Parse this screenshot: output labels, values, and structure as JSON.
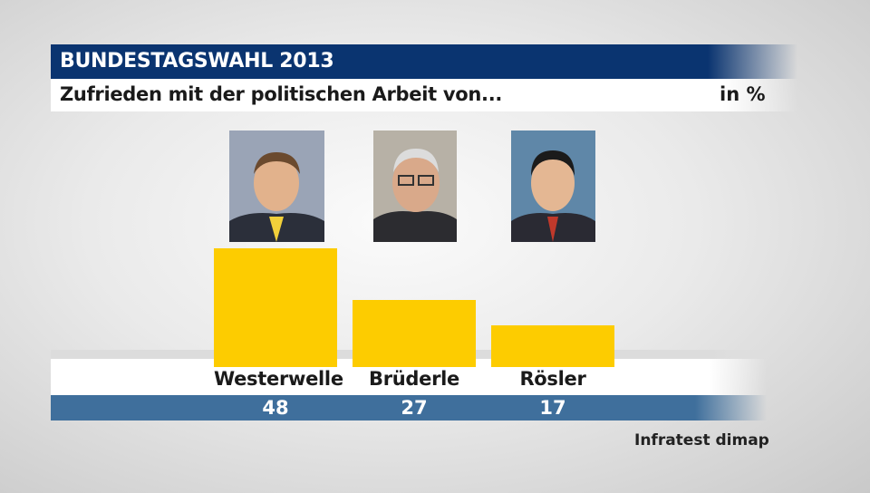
{
  "header": {
    "title": "BUNDESTAGSWAHL 2013",
    "subtitle": "Zufrieden mit der politischen Arbeit von...",
    "unit": "in %"
  },
  "source": "Infratest dimap",
  "colors": {
    "title_bar": "#0a3470",
    "bar": "#fdcc00",
    "value_band": "#3f6f9c"
  },
  "chart_data": {
    "type": "bar",
    "title": "Zufrieden mit der politischen Arbeit von...",
    "unit": "in %",
    "categories": [
      "Westerwelle",
      "Brüderle",
      "Rösler"
    ],
    "values": [
      48,
      27,
      17
    ],
    "ylim": [
      0,
      50
    ],
    "grid": false
  }
}
